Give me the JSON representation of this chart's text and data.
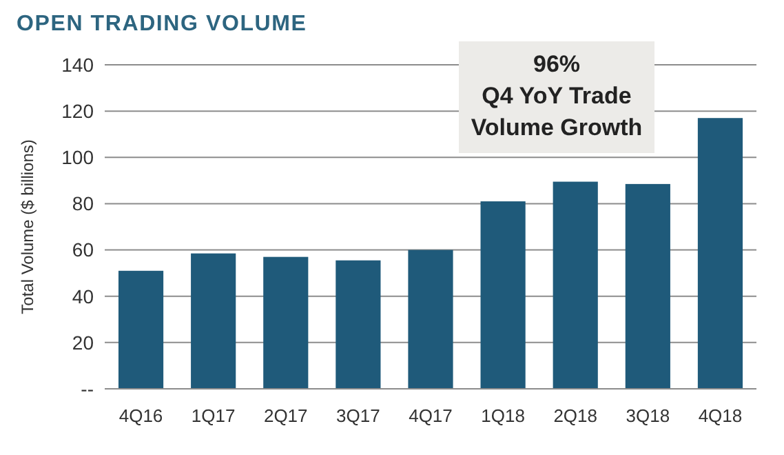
{
  "chart_data": {
    "type": "bar",
    "title": "OPEN TRADING VOLUME",
    "ylabel": "Total Volume ($ billions)",
    "categories": [
      "4Q16",
      "1Q17",
      "2Q17",
      "3Q17",
      "4Q17",
      "1Q18",
      "2Q18",
      "3Q18",
      "4Q18"
    ],
    "values": [
      51,
      58.5,
      57,
      55.5,
      60,
      81,
      89.5,
      88.5,
      117
    ],
    "color": "#1f5a7a",
    "ylim": [
      0,
      140
    ],
    "yticks": [
      {
        "value": 0,
        "label": "--"
      },
      20,
      40,
      60,
      80,
      100,
      120,
      140
    ],
    "grid": "y",
    "annotations": [
      "96%\nQ4 YoY Trade\nVolume Growth"
    ]
  }
}
